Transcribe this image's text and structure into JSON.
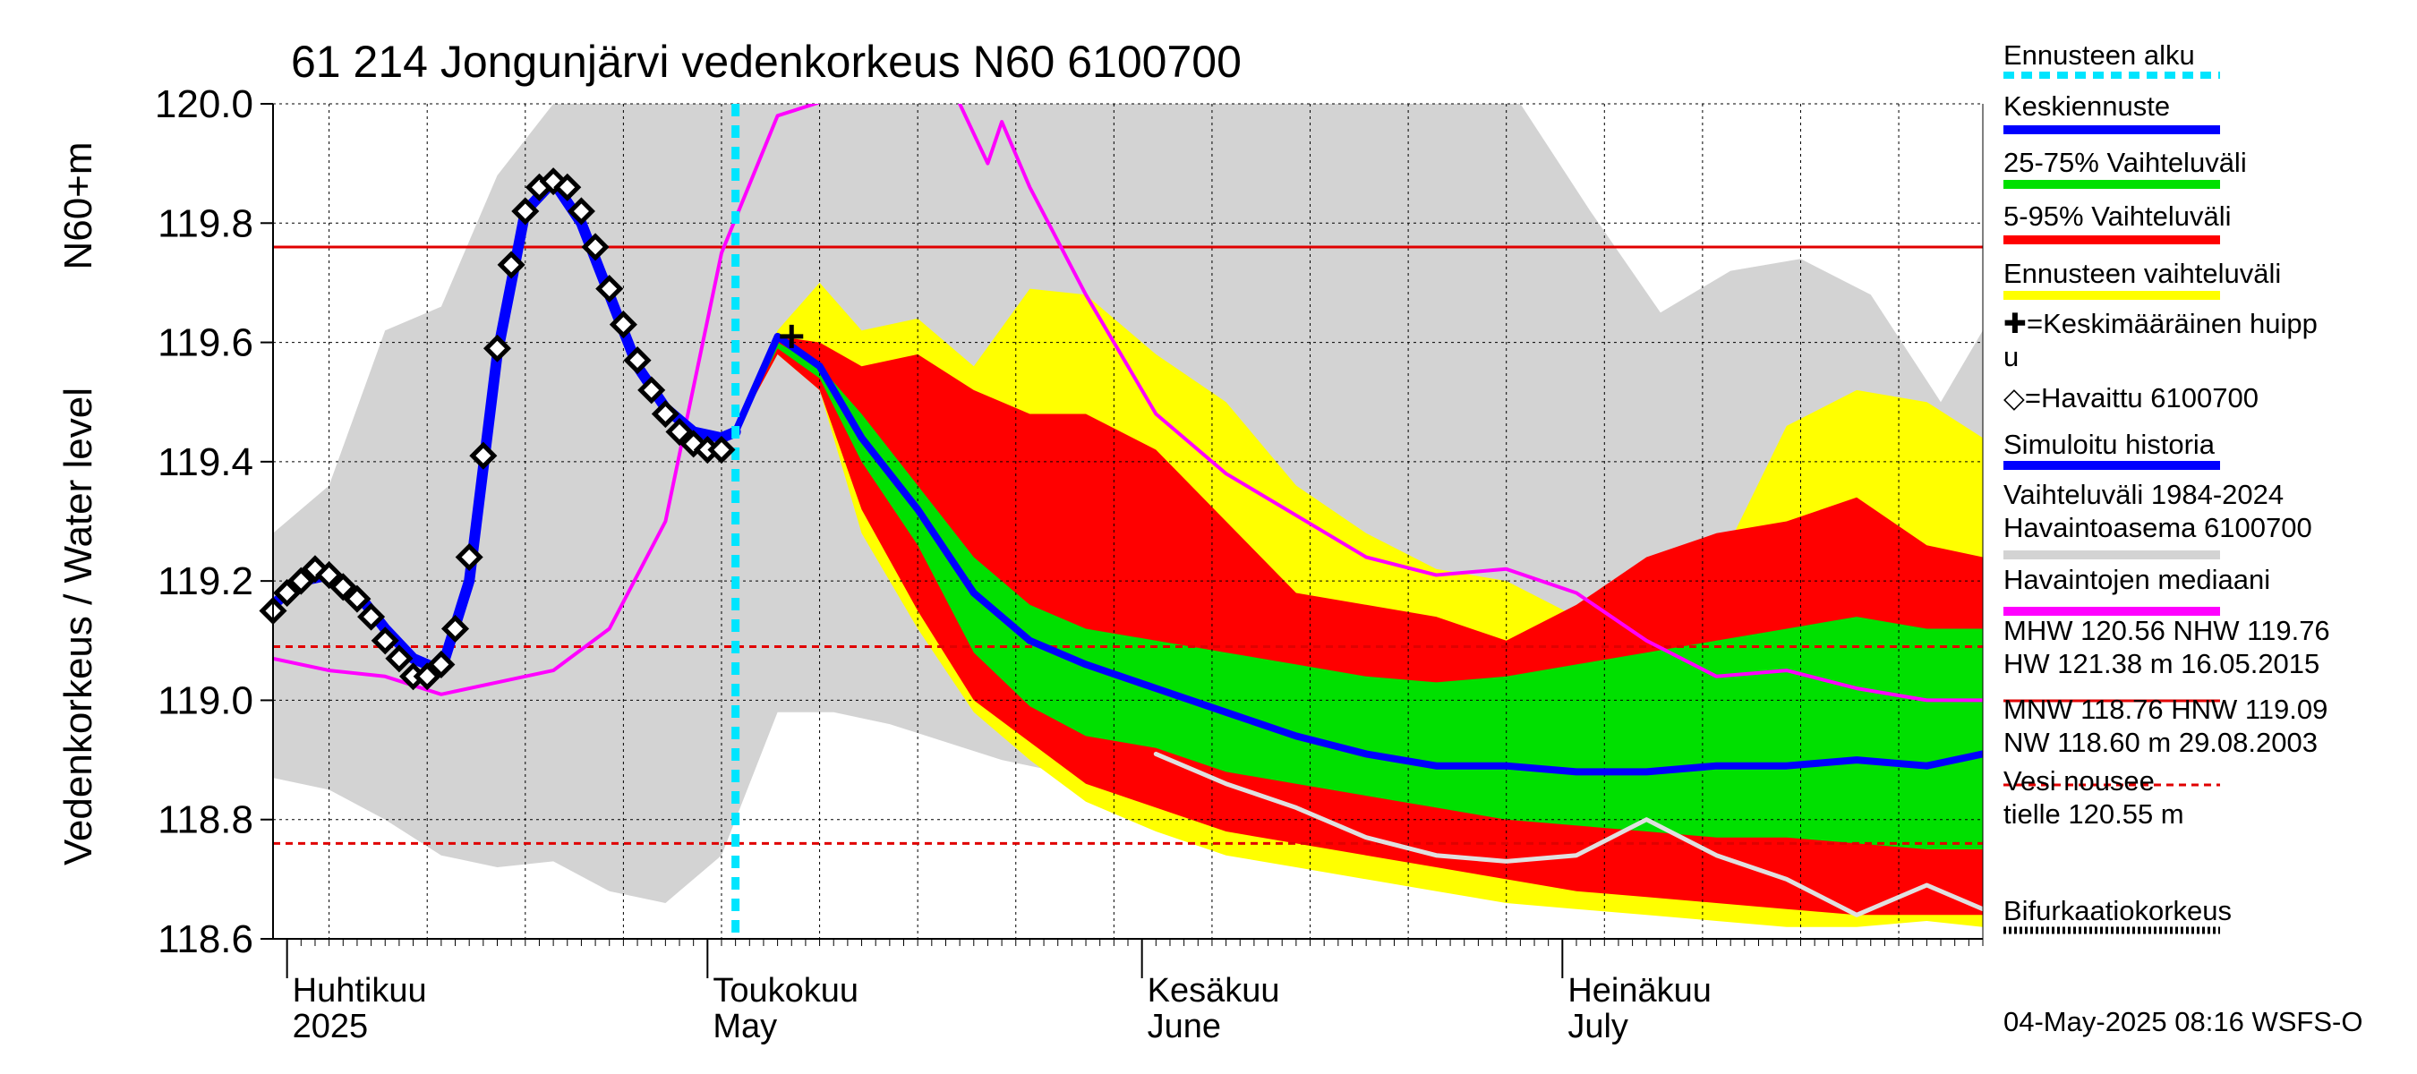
{
  "chart_data": {
    "type": "line",
    "title": "61 214 Jongunjärvi vedenkorkeus N60 6100700",
    "ylabel_top": "N60+m",
    "ylabel_main": "Vedenkorkeus / Water level",
    "ylim": [
      118.6,
      120.0
    ],
    "yticks": [
      118.6,
      118.8,
      119.0,
      119.2,
      119.4,
      119.6,
      119.8,
      120.0
    ],
    "ytick_labels": [
      "118.6",
      "118.8",
      "119.0",
      "119.2",
      "119.4",
      "119.6",
      "119.8",
      "120.0"
    ],
    "xlim": [
      "2025-03-31",
      "2025-07-31"
    ],
    "months": [
      {
        "fi": "Huhtikuu",
        "en": "2025",
        "date": "2025-04-01"
      },
      {
        "fi": "Toukokuu",
        "en": "May",
        "date": "2025-05-01"
      },
      {
        "fi": "Kesäkuu",
        "en": "June",
        "date": "2025-06-01"
      },
      {
        "fi": "Heinäkuu",
        "en": "July",
        "date": "2025-07-01"
      }
    ],
    "grid": true,
    "forecast_start": "2025-05-03",
    "reference_lines": [
      {
        "name": "NHW",
        "value": 119.76,
        "style": "solid",
        "color": "#e00000"
      },
      {
        "name": "HNW",
        "value": 119.09,
        "style": "dashed",
        "color": "#e00000"
      },
      {
        "name": "MNW",
        "value": 118.76,
        "style": "dashed",
        "color": "#e00000"
      }
    ],
    "envelopes": {
      "history_range_1984_2024": {
        "color": "#d3d3d3",
        "x": [
          "2025-03-31",
          "2025-04-04",
          "2025-04-08",
          "2025-04-12",
          "2025-04-16",
          "2025-04-20",
          "2025-04-24",
          "2025-04-28",
          "2025-05-02",
          "2025-05-06",
          "2025-05-10",
          "2025-05-14",
          "2025-05-18",
          "2025-05-22",
          "2025-05-26",
          "2025-05-30",
          "2025-06-03",
          "2025-06-08",
          "2025-06-13",
          "2025-06-18",
          "2025-06-23",
          "2025-06-28",
          "2025-07-03",
          "2025-07-08",
          "2025-07-13",
          "2025-07-18",
          "2025-07-23",
          "2025-07-28",
          "2025-07-31"
        ],
        "upper": [
          119.28,
          119.36,
          119.62,
          119.66,
          119.88,
          120.0,
          120.0,
          120.0,
          120.0,
          120.0,
          120.0,
          120.0,
          120.0,
          120.0,
          120.0,
          120.0,
          120.0,
          120.0,
          120.0,
          120.0,
          120.0,
          120.0,
          119.82,
          119.65,
          119.72,
          119.74,
          119.68,
          119.5,
          119.62
        ],
        "lower": [
          118.87,
          118.85,
          118.8,
          118.74,
          118.72,
          118.73,
          118.68,
          118.66,
          118.74,
          118.98,
          118.98,
          118.96,
          118.93,
          118.9,
          118.88,
          118.86,
          118.91,
          118.95,
          118.9,
          118.88,
          118.86,
          118.84,
          118.82,
          118.8,
          118.76,
          118.72,
          118.68,
          118.65,
          118.64
        ]
      },
      "forecast_range": {
        "color": "#ffff00",
        "x": [
          "2025-05-03",
          "2025-05-06",
          "2025-05-09",
          "2025-05-12",
          "2025-05-16",
          "2025-05-20",
          "2025-05-24",
          "2025-05-28",
          "2025-06-02",
          "2025-06-07",
          "2025-06-12",
          "2025-06-17",
          "2025-06-22",
          "2025-06-27",
          "2025-07-02",
          "2025-07-07",
          "2025-07-12",
          "2025-07-17",
          "2025-07-22",
          "2025-07-27",
          "2025-07-31"
        ],
        "upper": [
          119.45,
          119.62,
          119.7,
          119.62,
          119.64,
          119.56,
          119.69,
          119.68,
          119.58,
          119.5,
          119.36,
          119.28,
          119.22,
          119.2,
          119.14,
          119.24,
          119.22,
          119.46,
          119.52,
          119.5,
          119.44
        ],
        "lower": [
          119.45,
          119.58,
          119.52,
          119.28,
          119.12,
          118.98,
          118.9,
          118.83,
          118.78,
          118.74,
          118.72,
          118.7,
          118.68,
          118.66,
          118.65,
          118.64,
          118.63,
          118.62,
          118.62,
          118.63,
          118.62
        ]
      },
      "p5_95": {
        "color": "#ff0000",
        "x": [
          "2025-05-03",
          "2025-05-06",
          "2025-05-09",
          "2025-05-12",
          "2025-05-16",
          "2025-05-20",
          "2025-05-24",
          "2025-05-28",
          "2025-06-02",
          "2025-06-07",
          "2025-06-12",
          "2025-06-17",
          "2025-06-22",
          "2025-06-27",
          "2025-07-02",
          "2025-07-07",
          "2025-07-12",
          "2025-07-17",
          "2025-07-22",
          "2025-07-27",
          "2025-07-31"
        ],
        "upper": [
          119.45,
          119.61,
          119.6,
          119.56,
          119.58,
          119.52,
          119.48,
          119.48,
          119.42,
          119.3,
          119.18,
          119.16,
          119.14,
          119.1,
          119.16,
          119.24,
          119.28,
          119.3,
          119.34,
          119.26,
          119.24
        ],
        "lower": [
          119.45,
          119.58,
          119.52,
          119.32,
          119.15,
          119.0,
          118.93,
          118.86,
          118.82,
          118.78,
          118.76,
          118.74,
          118.72,
          118.7,
          118.68,
          118.67,
          118.66,
          118.65,
          118.64,
          118.64,
          118.64
        ]
      },
      "p25_75": {
        "color": "#00e000",
        "x": [
          "2025-05-03",
          "2025-05-06",
          "2025-05-09",
          "2025-05-12",
          "2025-05-16",
          "2025-05-20",
          "2025-05-24",
          "2025-05-28",
          "2025-06-02",
          "2025-06-07",
          "2025-06-12",
          "2025-06-17",
          "2025-06-22",
          "2025-06-27",
          "2025-07-02",
          "2025-07-07",
          "2025-07-12",
          "2025-07-17",
          "2025-07-22",
          "2025-07-27",
          "2025-07-31"
        ],
        "upper": [
          119.45,
          119.6,
          119.56,
          119.48,
          119.36,
          119.24,
          119.16,
          119.12,
          119.1,
          119.08,
          119.06,
          119.04,
          119.03,
          119.04,
          119.06,
          119.08,
          119.1,
          119.12,
          119.14,
          119.12,
          119.12
        ],
        "lower": [
          119.45,
          119.59,
          119.54,
          119.4,
          119.26,
          119.08,
          118.99,
          118.94,
          118.92,
          118.88,
          118.86,
          118.84,
          118.82,
          118.8,
          118.79,
          118.78,
          118.77,
          118.77,
          118.76,
          118.75,
          118.75
        ]
      }
    },
    "series": [
      {
        "name": "Havaittu 6100700",
        "color": "#000000",
        "marker": "diamond",
        "x": [
          "2025-03-31",
          "2025-04-01",
          "2025-04-02",
          "2025-04-03",
          "2025-04-04",
          "2025-04-05",
          "2025-04-06",
          "2025-04-07",
          "2025-04-08",
          "2025-04-09",
          "2025-04-10",
          "2025-04-11",
          "2025-04-12",
          "2025-04-13",
          "2025-04-14",
          "2025-04-15",
          "2025-04-16",
          "2025-04-17",
          "2025-04-18",
          "2025-04-19",
          "2025-04-20",
          "2025-04-21",
          "2025-04-22",
          "2025-04-23",
          "2025-04-24",
          "2025-04-25",
          "2025-04-26",
          "2025-04-27",
          "2025-04-28",
          "2025-04-29",
          "2025-04-30",
          "2025-05-01",
          "2025-05-02"
        ],
        "values": [
          119.15,
          119.18,
          119.2,
          119.22,
          119.21,
          119.19,
          119.17,
          119.14,
          119.1,
          119.07,
          119.04,
          119.04,
          119.06,
          119.12,
          119.24,
          119.41,
          119.59,
          119.73,
          119.82,
          119.86,
          119.87,
          119.86,
          119.82,
          119.76,
          119.69,
          119.63,
          119.57,
          119.52,
          119.48,
          119.45,
          119.43,
          119.42,
          119.42
        ]
      },
      {
        "name": "Simuloitu historia",
        "color": "#0000ff",
        "x": [
          "2025-03-31",
          "2025-04-02",
          "2025-04-04",
          "2025-04-06",
          "2025-04-08",
          "2025-04-10",
          "2025-04-12",
          "2025-04-14",
          "2025-04-16",
          "2025-04-18",
          "2025-04-20",
          "2025-04-22",
          "2025-04-24",
          "2025-04-26",
          "2025-04-28",
          "2025-04-30",
          "2025-05-02",
          "2025-05-03"
        ],
        "values": [
          119.16,
          119.2,
          119.21,
          119.18,
          119.12,
          119.07,
          119.05,
          119.2,
          119.58,
          119.82,
          119.87,
          119.8,
          119.68,
          119.56,
          119.49,
          119.45,
          119.44,
          119.45
        ]
      },
      {
        "name": "Keskiennuste",
        "color": "#0000ff",
        "x": [
          "2025-05-03",
          "2025-05-06",
          "2025-05-09",
          "2025-05-12",
          "2025-05-16",
          "2025-05-20",
          "2025-05-24",
          "2025-05-28",
          "2025-06-02",
          "2025-06-07",
          "2025-06-12",
          "2025-06-17",
          "2025-06-22",
          "2025-06-27",
          "2025-07-02",
          "2025-07-07",
          "2025-07-12",
          "2025-07-17",
          "2025-07-22",
          "2025-07-27",
          "2025-07-31"
        ],
        "values": [
          119.45,
          119.61,
          119.56,
          119.44,
          119.32,
          119.18,
          119.1,
          119.06,
          119.02,
          118.98,
          118.94,
          118.91,
          118.89,
          118.89,
          118.88,
          118.88,
          118.89,
          118.89,
          118.9,
          118.89,
          118.91
        ]
      },
      {
        "name": "Havaintojen mediaani",
        "color": "#ff00ff",
        "x": [
          "2025-03-31",
          "2025-04-04",
          "2025-04-08",
          "2025-04-12",
          "2025-04-16",
          "2025-04-20",
          "2025-04-24",
          "2025-04-28",
          "2025-05-02",
          "2025-05-06",
          "2025-05-10",
          "2025-05-14",
          "2025-05-18",
          "2025-05-19",
          "2025-05-21",
          "2025-05-22",
          "2025-05-24",
          "2025-05-28",
          "2025-06-02",
          "2025-06-07",
          "2025-06-12",
          "2025-06-17",
          "2025-06-22",
          "2025-06-27",
          "2025-07-02",
          "2025-07-07",
          "2025-07-12",
          "2025-07-17",
          "2025-07-22",
          "2025-07-27",
          "2025-07-31"
        ],
        "values": [
          119.07,
          119.05,
          119.04,
          119.01,
          119.03,
          119.05,
          119.12,
          119.3,
          119.75,
          119.98,
          120.01,
          120.04,
          120.04,
          120.0,
          119.9,
          119.97,
          119.86,
          119.68,
          119.48,
          119.38,
          119.31,
          119.24,
          119.21,
          119.22,
          119.18,
          119.1,
          119.04,
          119.05,
          119.02,
          119.0,
          119.0
        ]
      },
      {
        "name": "Vaihteluväli 1984-2024 alaraja",
        "color": "#e0e0e0",
        "x": [
          "2025-06-02",
          "2025-06-07",
          "2025-06-12",
          "2025-06-17",
          "2025-06-22",
          "2025-06-27",
          "2025-07-02",
          "2025-07-07",
          "2025-07-12",
          "2025-07-17",
          "2025-07-22",
          "2025-07-27",
          "2025-07-31"
        ],
        "values": [
          118.91,
          118.86,
          118.82,
          118.77,
          118.74,
          118.73,
          118.74,
          118.8,
          118.74,
          118.7,
          118.64,
          118.69,
          118.65
        ]
      }
    ],
    "peak_marker": {
      "name": "Keskimääräinen huippu",
      "x": "2025-05-07",
      "value": 119.61
    },
    "legend": [
      {
        "label": "Ennusteen alku",
        "style": "dashed",
        "color": "#00e5ff"
      },
      {
        "label": "Keskiennuste",
        "style": "solid",
        "color": "#0000ff"
      },
      {
        "label": "25-75% Vaihteluväli",
        "style": "solid",
        "color": "#00e000"
      },
      {
        "label": "5-95% Vaihteluväli",
        "style": "solid",
        "color": "#ff0000"
      },
      {
        "label": "Ennusteen vaihteluväli",
        "style": "solid",
        "color": "#ffff00"
      },
      {
        "label": "✚=Keskimääräinen huipp",
        "label2": "u",
        "style": "none",
        "color": "#000000"
      },
      {
        "label": "◇=Havaittu 6100700",
        "style": "none",
        "color": "#000000"
      },
      {
        "label": "Simuloitu historia",
        "style": "solid",
        "color": "#0000ff"
      },
      {
        "label": "Vaihteluväli 1984-2024",
        "label2": " Havaintoasema 6100700",
        "style": "solid",
        "color": "#d3d3d3"
      },
      {
        "label": "Havaintojen mediaani",
        "style": "solid",
        "color": "#ff00ff"
      },
      {
        "label": "MHW 120.56 NHW 119.76",
        "label2": "HW 121.38 m 16.05.2015",
        "style": "solid",
        "color": "#e00000"
      },
      {
        "label": "MNW 118.76 HNW 119.09",
        "label2": "NW 118.60 m 29.08.2003",
        "style": "dashed",
        "color": "#e00000"
      },
      {
        "label": "Vesi nousee",
        "label2": "tielle 120.55 m",
        "style": "dotted",
        "color": "#000000"
      },
      {
        "label": "Bifurkaatiokorkeus",
        "style": "dotted",
        "color": "#000000"
      }
    ],
    "footer": "04-May-2025 08:16 WSFS-O"
  }
}
